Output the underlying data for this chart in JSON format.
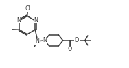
{
  "bg_color": "#ffffff",
  "line_color": "#3a3a3a",
  "atom_color": "#3a3a3a",
  "line_width": 1.1,
  "font_size": 5.8,
  "figsize": [
    1.88,
    0.99
  ],
  "dpi": 100,
  "xlim": [
    0,
    10
  ],
  "ylim": [
    0,
    5.3
  ]
}
